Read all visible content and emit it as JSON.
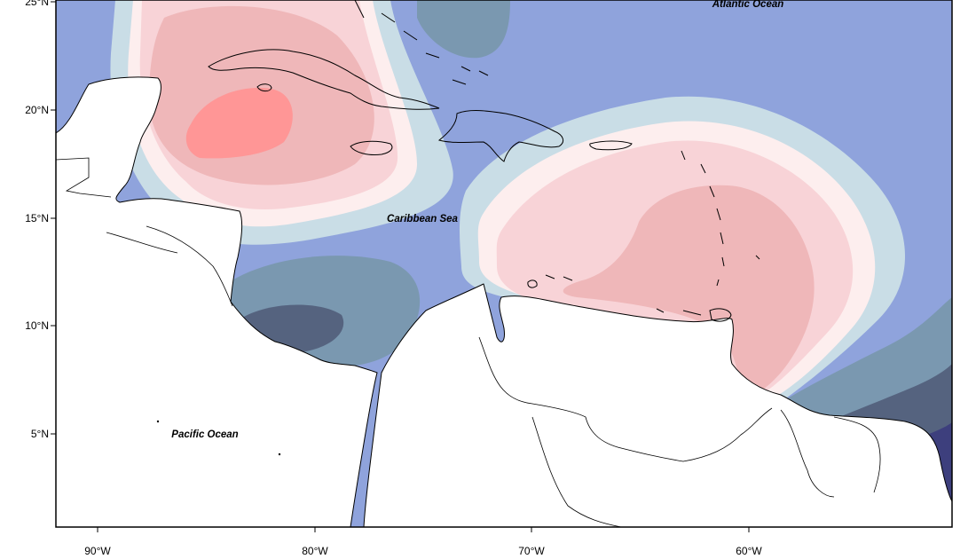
{
  "map": {
    "colors": {
      "band_deep_negative": "#3d3f7d",
      "band_negative_strong": "#55637f",
      "band_negative_medium": "#7a98b0",
      "band_negative_light": "#8fa3dc",
      "band_neutral_cool": "#c9dde6",
      "band_neutral_warm": "#fdeeee",
      "band_positive_light": "#f8d3d7",
      "band_positive_medium": "#efb7b9",
      "band_positive_strong": "#ff9696",
      "land": "#ffffff",
      "coastline": "#000000"
    },
    "labels": {
      "atlantic": "Atlantic Ocean",
      "caribbean": "Caribbean Sea",
      "pacific": "Pacific Ocean"
    },
    "lat_ticks": [
      "25°N",
      "20°N",
      "15°N",
      "10°N",
      "5°N"
    ],
    "lon_ticks": [
      "90°W",
      "80°W",
      "70°W",
      "60°W"
    ]
  }
}
